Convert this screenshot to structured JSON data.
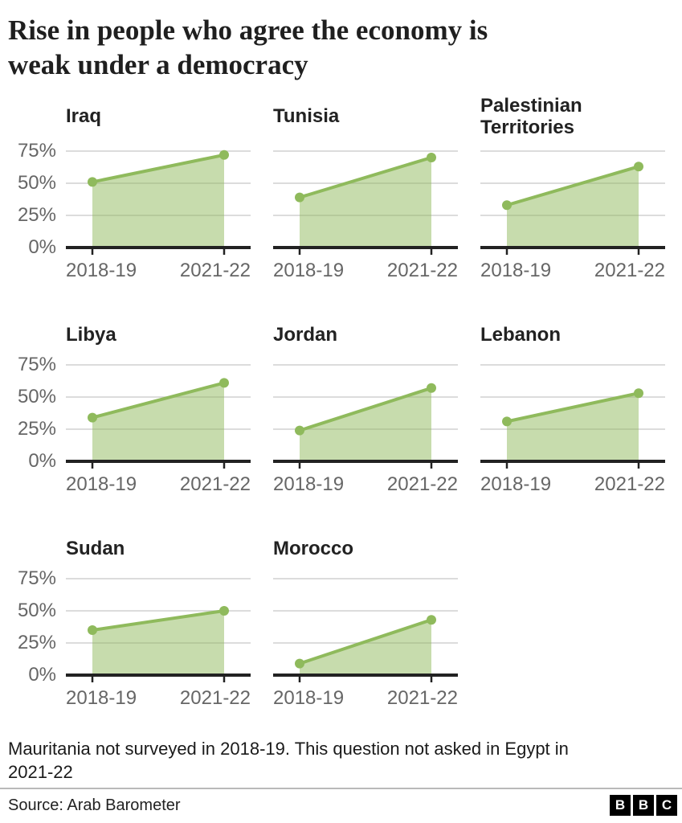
{
  "header": {
    "title": "Rise in people who agree the economy is weak under a democracy",
    "title_lines": [
      "Rise in people who agree the economy is",
      "weak under a democracy"
    ]
  },
  "chart_data": {
    "type": "area",
    "title": "Rise in people who agree the economy is weak under a democracy",
    "x_categories": [
      "2018-19",
      "2021-22"
    ],
    "ylabels": [
      "75%",
      "50%",
      "25%",
      "0%"
    ],
    "yticks": [
      75,
      50,
      25,
      0
    ],
    "ylim": [
      0,
      80
    ],
    "unit": "%",
    "grid": true,
    "legend": "none",
    "series": [
      {
        "name": "Iraq",
        "values": [
          51,
          72
        ]
      },
      {
        "name": "Tunisia",
        "values": [
          39,
          70
        ]
      },
      {
        "name": "Palestinian Territories",
        "values": [
          33,
          63
        ]
      },
      {
        "name": "Libya",
        "values": [
          34,
          61
        ]
      },
      {
        "name": "Jordan",
        "values": [
          24,
          57
        ]
      },
      {
        "name": "Lebanon",
        "values": [
          31,
          53
        ]
      },
      {
        "name": "Sudan",
        "values": [
          35,
          50
        ]
      },
      {
        "name": "Morocco",
        "values": [
          9,
          43
        ]
      }
    ]
  },
  "footer": {
    "note": "Mauritania not surveyed in 2018-19. This question not asked in Egypt in 2021-22",
    "note_lines": [
      "Mauritania not surveyed in 2018-19. This question not asked in Egypt in",
      "2021-22"
    ],
    "source": "Source: Arab Barometer",
    "logo_letters": [
      "B",
      "B",
      "C"
    ]
  },
  "colors": {
    "line": "#8fba5c",
    "fill": "rgba(143,186,92,0.5)",
    "axis": "#222222",
    "gridline": "#d0d0d0",
    "tick_label": "#666666"
  }
}
